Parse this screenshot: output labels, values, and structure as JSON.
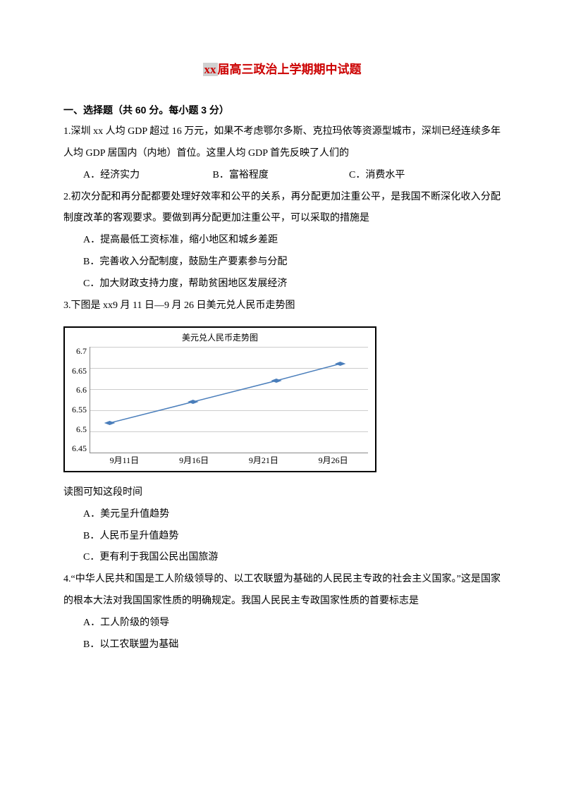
{
  "title_prefix": "xx",
  "title_rest": "届高三政治上学期期中试题",
  "section1": "一、选择题（共 60 分。每小题 3 分）",
  "q1": {
    "text": "1.深圳 xx 人均 GDP 超过 16 万元，如果不考虑鄂尔多斯、克拉玛依等资源型城市，深圳已经连续多年人均 GDP 居国内（内地）首位。这里人均 GDP 首先反映了人们的",
    "a": "A．经济实力",
    "b": "B．富裕程度",
    "c": "C．消费水平"
  },
  "q2": {
    "text": "2.初次分配和再分配都要处理好效率和公平的关系，再分配更加注重公平，是我国不断深化收入分配制度改革的客观要求。要做到再分配更加注重公平，可以采取的措施是",
    "a": "A．提高最低工资标准，缩小地区和城乡差距",
    "b": "B．完善收入分配制度，鼓励生产要素参与分配",
    "c": "C．加大财政支持力度，帮助贫困地区发展经济"
  },
  "q3": {
    "text": "3.下图是 xx9 月 11 日—9 月 26 日美元兑人民币走势图",
    "after": "读图可知这段时间",
    "a": "A．美元呈升值趋势",
    "b": "B．人民币呈升值趋势",
    "c": "C．更有利于我国公民出国旅游"
  },
  "q4": {
    "text": "4.“中华人民共和国是工人阶级领导的、以工农联盟为基础的人民民主专政的社会主义国家。”这是国家的根本大法对我国国家性质的明确规定。我国人民民主专政国家性质的首要标志是",
    "a": "A．工人阶级的领导",
    "b": "B．以工农联盟为基础"
  },
  "chart": {
    "title": "美元兑人民币走势图",
    "y_ticks": [
      "6.7",
      "6.65",
      "6.6",
      "6.55",
      "6.5",
      "6.45"
    ],
    "x_ticks": [
      "9月11日",
      "9月16日",
      "9月21日",
      "9月26日"
    ],
    "ylim": [
      6.45,
      6.7
    ],
    "line_color": "#4a7ebb",
    "marker_color": "#4a7ebb",
    "grid_color": "#cccccc",
    "points": [
      {
        "x": 7,
        "y_val": 6.52
      },
      {
        "x": 37,
        "y_val": 6.57
      },
      {
        "x": 67,
        "y_val": 6.62
      },
      {
        "x": 90,
        "y_val": 6.66
      }
    ]
  }
}
